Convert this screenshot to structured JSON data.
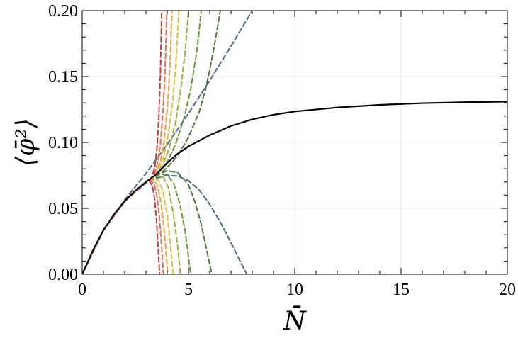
{
  "chart_data": {
    "type": "line",
    "xlabel": "N̄",
    "ylabel": "⟨φ̄²⟩",
    "xlim": [
      0,
      20
    ],
    "ylim": [
      0,
      0.2
    ],
    "x_ticks": [
      0,
      5,
      10,
      15,
      20
    ],
    "x_tick_labels": [
      "0",
      "5",
      "10",
      "15",
      "20"
    ],
    "y_ticks": [
      0,
      0.05,
      0.1,
      0.15,
      0.2
    ],
    "y_tick_labels": [
      "0.00",
      "0.05",
      "0.10",
      "0.15",
      "0.20"
    ],
    "grid": true,
    "legend": "none",
    "series": [
      {
        "style": "solid",
        "color": "#000000",
        "x": [
          0,
          0.5,
          1,
          1.5,
          2,
          2.5,
          3,
          3.5,
          4,
          4.5,
          5,
          6,
          7,
          8,
          9,
          10,
          12,
          14,
          16,
          18,
          20
        ],
        "y": [
          0,
          0.018,
          0.0335,
          0.0455,
          0.0555,
          0.0635,
          0.07,
          0.076,
          0.0845,
          0.0915,
          0.097,
          0.1055,
          0.1125,
          0.1175,
          0.121,
          0.1235,
          0.1265,
          0.1285,
          0.1298,
          0.1305,
          0.131
        ]
      },
      {
        "style": "dashed",
        "color": "#4a6890",
        "x": [
          0,
          1,
          2,
          3,
          4,
          5,
          6,
          7,
          8
        ],
        "y": [
          0,
          0.0335,
          0.0565,
          0.0765,
          0.0985,
          0.122,
          0.147,
          0.173,
          0.2
        ]
      },
      {
        "style": "dashed",
        "color": "#4a6890",
        "x": [
          0,
          1,
          2,
          3,
          3.5,
          4,
          4.5,
          5,
          5.5,
          6,
          6.5,
          7,
          7.5,
          7.75
        ],
        "y": [
          0,
          0.0335,
          0.0555,
          0.0695,
          0.073,
          0.075,
          0.0745,
          0.071,
          0.064,
          0.053,
          0.0395,
          0.024,
          0.0075,
          0
        ]
      },
      {
        "style": "dashed",
        "color": "#4f7a3a",
        "x": [
          0,
          1,
          2,
          3,
          3.5,
          4,
          4.5,
          5,
          5.5,
          5.8,
          6,
          6.2,
          6.5
        ],
        "y": [
          0,
          0.0335,
          0.0555,
          0.0695,
          0.074,
          0.081,
          0.09,
          0.104,
          0.123,
          0.14,
          0.155,
          0.172,
          0.2
        ]
      },
      {
        "style": "dashed",
        "color": "#4f7a3a",
        "x": [
          0,
          1,
          2,
          3,
          3.5,
          4,
          4.5,
          5,
          5.3,
          5.6,
          5.9,
          6.1
        ],
        "y": [
          0,
          0.0335,
          0.0555,
          0.0695,
          0.0755,
          0.0785,
          0.077,
          0.068,
          0.055,
          0.038,
          0.015,
          0
        ]
      },
      {
        "style": "dashed",
        "color": "#6a9a3c",
        "x": [
          0,
          1,
          2,
          3,
          3.5,
          4,
          4.4,
          4.8,
          5.1,
          5.4,
          5.6
        ],
        "y": [
          0,
          0.0335,
          0.0555,
          0.0695,
          0.0755,
          0.085,
          0.099,
          0.119,
          0.14,
          0.17,
          0.2
        ]
      },
      {
        "style": "dashed",
        "color": "#6a9a3c",
        "x": [
          0,
          1,
          2,
          3,
          3.5,
          4,
          4.3,
          4.6,
          4.85,
          5.1
        ],
        "y": [
          0,
          0.0335,
          0.0555,
          0.0695,
          0.076,
          0.0755,
          0.069,
          0.053,
          0.032,
          0
        ]
      },
      {
        "style": "dashed",
        "color": "#9cb040",
        "x": [
          0,
          1,
          2,
          3,
          3.4,
          3.8,
          4.1,
          4.4,
          4.65,
          4.85,
          5.0
        ],
        "y": [
          0,
          0.0335,
          0.0555,
          0.0695,
          0.074,
          0.083,
          0.096,
          0.116,
          0.142,
          0.17,
          0.2
        ]
      },
      {
        "style": "dashed",
        "color": "#9cb040",
        "x": [
          0,
          1,
          2,
          3,
          3.4,
          3.8,
          4.05,
          4.3,
          4.5,
          4.62
        ],
        "y": [
          0,
          0.0335,
          0.0555,
          0.0695,
          0.0745,
          0.074,
          0.066,
          0.045,
          0.02,
          0
        ]
      },
      {
        "style": "dashed",
        "color": "#e0c040",
        "x": [
          0,
          1,
          2,
          3,
          3.3,
          3.6,
          3.85,
          4.05,
          4.25,
          4.4,
          4.55
        ],
        "y": [
          0,
          0.0335,
          0.0555,
          0.0695,
          0.073,
          0.079,
          0.09,
          0.106,
          0.13,
          0.158,
          0.2
        ]
      },
      {
        "style": "dashed",
        "color": "#e0c040",
        "x": [
          0,
          1,
          2,
          3,
          3.3,
          3.6,
          3.8,
          4.0,
          4.15,
          4.28
        ],
        "y": [
          0,
          0.0335,
          0.0555,
          0.0695,
          0.073,
          0.071,
          0.063,
          0.045,
          0.022,
          0
        ]
      },
      {
        "style": "dashed",
        "color": "#f0a040",
        "x": [
          0,
          1,
          2,
          3,
          3.25,
          3.5,
          3.7,
          3.85,
          4.0,
          4.12,
          4.22
        ],
        "y": [
          0,
          0.0335,
          0.0555,
          0.0695,
          0.0725,
          0.0775,
          0.087,
          0.101,
          0.125,
          0.155,
          0.2
        ]
      },
      {
        "style": "dashed",
        "color": "#f0a040",
        "x": [
          0,
          1,
          2,
          3,
          3.25,
          3.5,
          3.65,
          3.8,
          3.92,
          4.02
        ],
        "y": [
          0,
          0.0335,
          0.0555,
          0.0695,
          0.072,
          0.069,
          0.06,
          0.043,
          0.022,
          0
        ]
      },
      {
        "style": "dashed",
        "color": "#e07050",
        "x": [
          0,
          1,
          2,
          3,
          3.2,
          3.4,
          3.55,
          3.68,
          3.8,
          3.9,
          3.98
        ],
        "y": [
          0,
          0.0335,
          0.0555,
          0.0695,
          0.072,
          0.076,
          0.085,
          0.099,
          0.123,
          0.155,
          0.2
        ]
      },
      {
        "style": "dashed",
        "color": "#e07050",
        "x": [
          0,
          1,
          2,
          3,
          3.2,
          3.4,
          3.52,
          3.64,
          3.74,
          3.82
        ],
        "y": [
          0,
          0.0335,
          0.0555,
          0.0695,
          0.0715,
          0.068,
          0.059,
          0.042,
          0.02,
          0
        ]
      },
      {
        "style": "dashed",
        "color": "#c04040",
        "x": [
          0,
          1,
          2,
          3,
          3.15,
          3.3,
          3.42,
          3.52,
          3.6,
          3.68,
          3.74
        ],
        "y": [
          0,
          0.0335,
          0.0555,
          0.0695,
          0.0715,
          0.0745,
          0.082,
          0.096,
          0.118,
          0.152,
          0.2
        ]
      },
      {
        "style": "dashed",
        "color": "#c04040",
        "x": [
          0,
          1,
          2,
          3,
          3.15,
          3.3,
          3.4,
          3.5,
          3.58,
          3.64
        ],
        "y": [
          0,
          0.0335,
          0.0555,
          0.0695,
          0.0712,
          0.067,
          0.058,
          0.04,
          0.018,
          0
        ]
      }
    ]
  }
}
